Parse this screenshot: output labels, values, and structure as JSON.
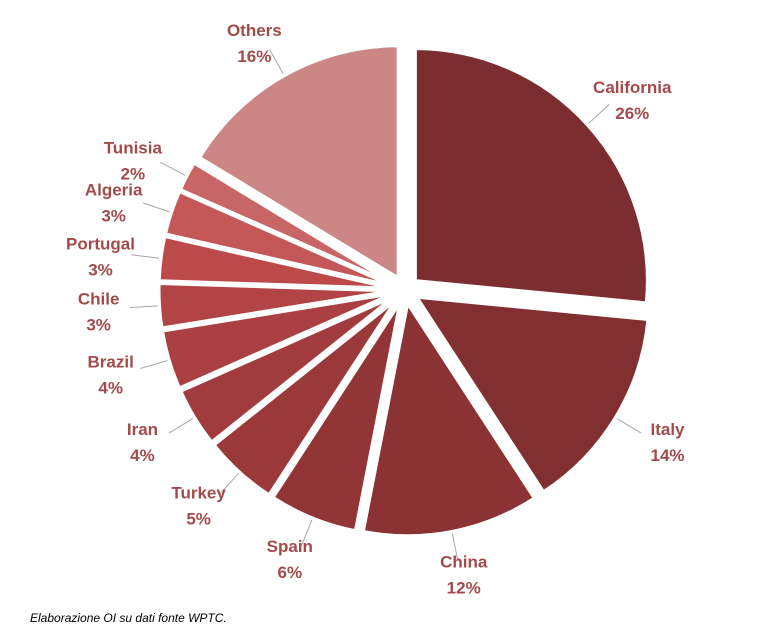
{
  "chart_data": {
    "type": "pie",
    "categories": [
      "California",
      "Italy",
      "China",
      "Spain",
      "Turkey",
      "Iran",
      "Brazil",
      "Chile",
      "Portugal",
      "Algeria",
      "Tunisia",
      "Others"
    ],
    "values": [
      26,
      14,
      12,
      6,
      5,
      4,
      4,
      3,
      3,
      3,
      2,
      16
    ],
    "value_labels": [
      "26%",
      "14%",
      "12%",
      "6%",
      "5%",
      "4%",
      "4%",
      "3%",
      "3%",
      "3%",
      "2%",
      "16%"
    ],
    "colors": [
      "#7b2d2f",
      "#822f31",
      "#8a3234",
      "#923537",
      "#9a383a",
      "#a23b3e",
      "#aa4042",
      "#b24446",
      "#bd4a4b",
      "#c45757",
      "#c86666",
      "#cd8686"
    ],
    "footnote": "Elaborazione OI su dati fonte WPTC."
  }
}
